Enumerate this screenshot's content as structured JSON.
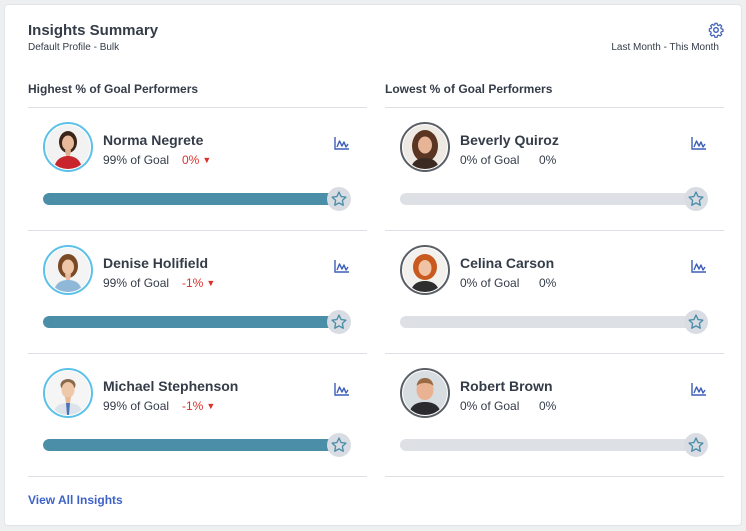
{
  "header": {
    "title": "Insights Summary",
    "subtitle": "Default Profile - Bulk",
    "period": "Last Month - This Month"
  },
  "colors": {
    "bar_fill": "#4a8ea8",
    "bar_track": "#dde0e5",
    "negative": "#d9302c",
    "link": "#3d63c8",
    "avatar_ring_top": "#5cc1e8",
    "avatar_ring_low": "#5a5f66"
  },
  "highest": {
    "heading": "Highest % of Goal Performers",
    "performers": [
      {
        "name": "Norma Negrete",
        "goal": "99% of Goal",
        "delta": "0%",
        "trend": "down",
        "progress": 1.0
      },
      {
        "name": "Denise Holifield",
        "goal": "99% of Goal",
        "delta": "-1%",
        "trend": "down",
        "progress": 1.0
      },
      {
        "name": "Michael Stephenson",
        "goal": "99% of Goal",
        "delta": "-1%",
        "trend": "down",
        "progress": 1.0
      }
    ]
  },
  "lowest": {
    "heading": "Lowest % of Goal Performers",
    "performers": [
      {
        "name": "Beverly Quiroz",
        "goal": "0% of Goal",
        "delta": "0%",
        "trend": "none",
        "progress": 0.0
      },
      {
        "name": "Celina Carson",
        "goal": "0% of Goal",
        "delta": "0%",
        "trend": "none",
        "progress": 0.0
      },
      {
        "name": "Robert Brown",
        "goal": "0% of Goal",
        "delta": "0%",
        "trend": "none",
        "progress": 0.0
      }
    ]
  },
  "footer": {
    "view_all": "View All Insights"
  },
  "icons": {
    "settings": "gear-icon",
    "trend": "line-chart-icon",
    "favorite": "star-icon",
    "down": "triangle-down-icon"
  }
}
